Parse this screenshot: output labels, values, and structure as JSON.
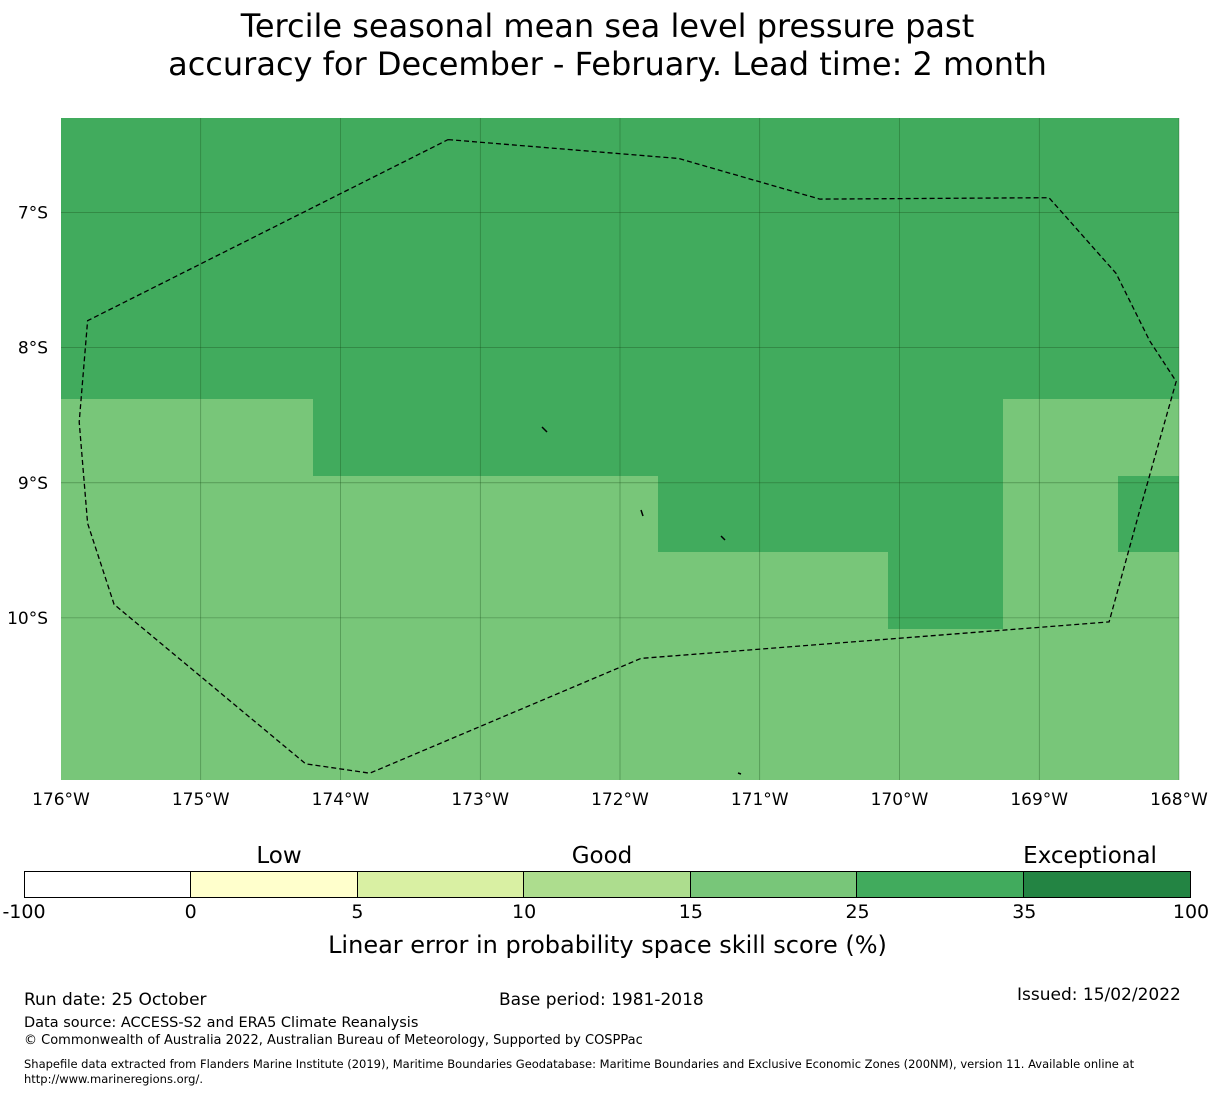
{
  "title": {
    "line1": "Tercile seasonal mean sea level pressure past",
    "line2": "accuracy for December - February. Lead time: 2 month"
  },
  "map": {
    "lon_labels": [
      "176°W",
      "175°W",
      "174°W",
      "173°W",
      "172°W",
      "171°W",
      "170°W",
      "169°W",
      "168°W"
    ],
    "lat_labels": [
      "7°S",
      "8°S",
      "9°S",
      "10°S"
    ],
    "colors": {
      "band_15_25": "#78c679",
      "band_25_35": "#41ab5d",
      "gridline": "#1a4d1a",
      "boundary": "#000000"
    },
    "lon_range": [
      -176,
      -168
    ],
    "lat_range": [
      -11.2,
      -6.3
    ],
    "eez_boundary_lonlat": [
      [
        -173.23,
        -6.46
      ],
      [
        -171.58,
        -6.6
      ],
      [
        -170.57,
        -6.9
      ],
      [
        -168.93,
        -6.89
      ],
      [
        -168.45,
        -7.45
      ],
      [
        -168.21,
        -7.95
      ],
      [
        -168.02,
        -8.25
      ],
      [
        -168.28,
        -9.2
      ],
      [
        -168.5,
        -10.03
      ],
      [
        -171.85,
        -10.3
      ],
      [
        -173.79,
        -11.15
      ],
      [
        -174.25,
        -11.08
      ],
      [
        -175.62,
        -9.9
      ],
      [
        -175.81,
        -9.3
      ],
      [
        -175.87,
        -8.55
      ],
      [
        -175.81,
        -7.8
      ],
      [
        -173.23,
        -6.46
      ]
    ]
  },
  "colorbar": {
    "category_labels": [
      "Low",
      "Good",
      "Exceptional"
    ],
    "tick_labels": [
      "-100",
      "0",
      "5",
      "10",
      "15",
      "25",
      "35",
      "100"
    ],
    "colors": [
      "#ffffff",
      "#ffffcc",
      "#d9f0a3",
      "#addd8e",
      "#78c679",
      "#41ab5d",
      "#238443"
    ],
    "label": "Linear error in probability space skill score (%)"
  },
  "footer": {
    "run_date": "Run date: 25 October",
    "base_period": "Base period: 1981-2018",
    "issued": "Issued: 15/02/2022",
    "data_source": "Data source: ACCESS-S2 and ERA5 Climate Reanalysis",
    "copyright": "© Commonwealth of Australia 2022, Australian Bureau of Meteorology, Supported by COSPPac",
    "shapefile_line1": "Shapefile data extracted from Flanders Marine Institute (2019), Maritime Boundaries Geodatabase: Maritime Boundaries and Exclusive Economic Zones (200NM), version 11. Available online at",
    "shapefile_line2": "http://www.marineregions.org/."
  }
}
